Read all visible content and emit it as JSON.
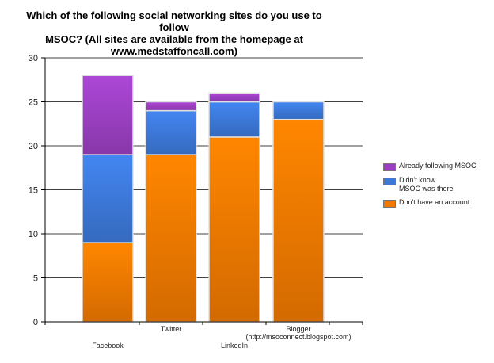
{
  "chart_data": {
    "type": "bar",
    "stacked": true,
    "title": "Which of the following social networking sites do you use to follow\nMSOC?  (All sites are available from the homepage at\nwww.medstaffoncall.com)",
    "categories": [
      "Facebook",
      "Twitter",
      "LinkedIn",
      "Blogger\n(http://msoconnect.blogspot.com)"
    ],
    "series": [
      {
        "name": "Don't have an account",
        "values": [
          9,
          19,
          21,
          23
        ],
        "color": "#f07800"
      },
      {
        "name": "Didn't know\nMSOC was there",
        "values": [
          10,
          5,
          4,
          2
        ],
        "color": "#3c78d8"
      },
      {
        "name": "Already following MSOC",
        "values": [
          9,
          1,
          1,
          0
        ],
        "color": "#9a3fc0"
      }
    ],
    "legend_order": [
      "Already following MSOC",
      "Didn't know\nMSOC was there",
      "Don't have an account"
    ],
    "ylim": [
      0,
      30
    ],
    "yticks": [
      0,
      5,
      10,
      15,
      20,
      25,
      30
    ],
    "grid": true,
    "legend_position": "right"
  }
}
